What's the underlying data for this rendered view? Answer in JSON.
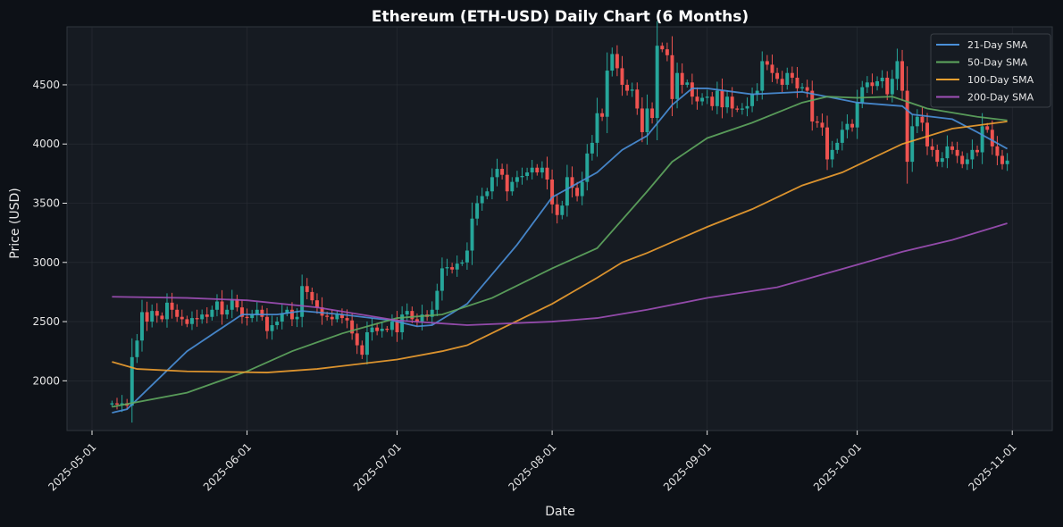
{
  "chart_data": {
    "type": "candlestick",
    "title": "Ethereum (ETH-USD) Daily Chart (6 Months)",
    "xlabel": "Date",
    "ylabel": "Price (USD)",
    "xlim": [
      "2025-04-26",
      "2025-11-09"
    ],
    "ylim": [
      1580,
      4990
    ],
    "x_ticks": [
      "2025-05-01",
      "2025-06-01",
      "2025-07-01",
      "2025-08-01",
      "2025-09-01",
      "2025-10-01",
      "2025-11-01"
    ],
    "y_ticks": [
      2000,
      2500,
      3000,
      3500,
      4000,
      4500
    ],
    "grid": true,
    "legend_position": "top-right",
    "colors": {
      "up": "#26a69a",
      "down": "#ef5350",
      "background": "#0d1117",
      "plot_background": "#161b22"
    },
    "candles": {
      "start_date": "2025-05-05",
      "frequency": "daily",
      "close": [
        1810,
        1800,
        1810,
        1790,
        2200,
        2340,
        2580,
        2500,
        2590,
        2550,
        2520,
        2660,
        2600,
        2540,
        2520,
        2480,
        2530,
        2520,
        2560,
        2540,
        2600,
        2670,
        2560,
        2600,
        2690,
        2620,
        2540,
        2530,
        2560,
        2600,
        2540,
        2420,
        2470,
        2500,
        2570,
        2600,
        2520,
        2540,
        2800,
        2750,
        2680,
        2620,
        2550,
        2540,
        2520,
        2560,
        2530,
        2510,
        2400,
        2300,
        2220,
        2410,
        2450,
        2420,
        2440,
        2430,
        2500,
        2410,
        2560,
        2590,
        2520,
        2500,
        2560,
        2540,
        2600,
        2760,
        2950,
        2960,
        2940,
        2990,
        3000,
        3100,
        3370,
        3500,
        3560,
        3600,
        3720,
        3790,
        3740,
        3600,
        3680,
        3720,
        3730,
        3760,
        3800,
        3760,
        3800,
        3700,
        3490,
        3400,
        3480,
        3720,
        3630,
        3560,
        3680,
        3920,
        4010,
        4260,
        4230,
        4620,
        4760,
        4640,
        4500,
        4450,
        4460,
        4300,
        4100,
        4300,
        4220,
        4830,
        4800,
        4750,
        4380,
        4600,
        4500,
        4520,
        4400,
        4360,
        4390,
        4400,
        4320,
        4450,
        4310,
        4400,
        4300,
        4290,
        4300,
        4320,
        4420,
        4450,
        4700,
        4670,
        4600,
        4550,
        4500,
        4600,
        4560,
        4470,
        4480,
        4450,
        4190,
        4180,
        4140,
        3870,
        3950,
        4010,
        4120,
        4170,
        4140,
        4350,
        4480,
        4520,
        4490,
        4530,
        4560,
        4420,
        4550,
        4700,
        4450,
        3850,
        4150,
        4230,
        4180,
        3980,
        3950,
        3850,
        3880,
        3980,
        3950,
        3900,
        3830,
        3870,
        3950,
        3930,
        4150,
        4120,
        3980,
        3900,
        3830,
        3860
      ]
    },
    "series": [
      {
        "name": "21-Day SMA",
        "color": "#4a90d9",
        "points": [
          [
            "2025-05-05",
            1730
          ],
          [
            "2025-05-08",
            1760
          ],
          [
            "2025-05-20",
            2250
          ],
          [
            "2025-05-31",
            2560
          ],
          [
            "2025-06-07",
            2560
          ],
          [
            "2025-06-12",
            2590
          ],
          [
            "2025-06-20",
            2560
          ],
          [
            "2025-06-30",
            2510
          ],
          [
            "2025-07-05",
            2460
          ],
          [
            "2025-07-08",
            2470
          ],
          [
            "2025-07-15",
            2650
          ],
          [
            "2025-07-20",
            2900
          ],
          [
            "2025-07-25",
            3150
          ],
          [
            "2025-08-01",
            3550
          ],
          [
            "2025-08-10",
            3760
          ],
          [
            "2025-08-15",
            3950
          ],
          [
            "2025-08-20",
            4070
          ],
          [
            "2025-08-25",
            4330
          ],
          [
            "2025-08-29",
            4470
          ],
          [
            "2025-09-01",
            4470
          ],
          [
            "2025-09-10",
            4420
          ],
          [
            "2025-09-20",
            4440
          ],
          [
            "2025-09-25",
            4400
          ],
          [
            "2025-10-01",
            4350
          ],
          [
            "2025-10-10",
            4320
          ],
          [
            "2025-10-12",
            4250
          ],
          [
            "2025-10-20",
            4210
          ],
          [
            "2025-10-25",
            4100
          ],
          [
            "2025-10-31",
            3960
          ]
        ]
      },
      {
        "name": "50-Day SMA",
        "color": "#5fa85f",
        "points": [
          [
            "2025-05-05",
            1780
          ],
          [
            "2025-05-20",
            1900
          ],
          [
            "2025-06-01",
            2080
          ],
          [
            "2025-06-10",
            2250
          ],
          [
            "2025-06-20",
            2400
          ],
          [
            "2025-07-01",
            2530
          ],
          [
            "2025-07-10",
            2560
          ],
          [
            "2025-07-20",
            2700
          ],
          [
            "2025-08-01",
            2950
          ],
          [
            "2025-08-10",
            3120
          ],
          [
            "2025-08-20",
            3600
          ],
          [
            "2025-08-25",
            3850
          ],
          [
            "2025-09-01",
            4050
          ],
          [
            "2025-09-10",
            4180
          ],
          [
            "2025-09-20",
            4350
          ],
          [
            "2025-09-25",
            4400
          ],
          [
            "2025-10-01",
            4390
          ],
          [
            "2025-10-08",
            4400
          ],
          [
            "2025-10-15",
            4300
          ],
          [
            "2025-10-25",
            4230
          ],
          [
            "2025-10-31",
            4200
          ]
        ]
      },
      {
        "name": "100-Day SMA",
        "color": "#f0a030",
        "points": [
          [
            "2025-05-05",
            2160
          ],
          [
            "2025-05-10",
            2100
          ],
          [
            "2025-05-20",
            2080
          ],
          [
            "2025-06-05",
            2070
          ],
          [
            "2025-06-15",
            2100
          ],
          [
            "2025-07-01",
            2180
          ],
          [
            "2025-07-10",
            2250
          ],
          [
            "2025-07-15",
            2300
          ],
          [
            "2025-08-01",
            2650
          ],
          [
            "2025-08-10",
            2870
          ],
          [
            "2025-08-15",
            3000
          ],
          [
            "2025-08-20",
            3080
          ],
          [
            "2025-09-01",
            3300
          ],
          [
            "2025-09-10",
            3450
          ],
          [
            "2025-09-20",
            3650
          ],
          [
            "2025-09-28",
            3760
          ],
          [
            "2025-10-10",
            4000
          ],
          [
            "2025-10-20",
            4130
          ],
          [
            "2025-10-31",
            4190
          ]
        ]
      },
      {
        "name": "200-Day SMA",
        "color": "#a050b8",
        "points": [
          [
            "2025-05-05",
            2710
          ],
          [
            "2025-05-20",
            2700
          ],
          [
            "2025-06-01",
            2680
          ],
          [
            "2025-06-15",
            2620
          ],
          [
            "2025-07-01",
            2510
          ],
          [
            "2025-07-15",
            2470
          ],
          [
            "2025-08-01",
            2500
          ],
          [
            "2025-08-10",
            2530
          ],
          [
            "2025-08-20",
            2600
          ],
          [
            "2025-09-01",
            2700
          ],
          [
            "2025-09-15",
            2790
          ],
          [
            "2025-10-01",
            2980
          ],
          [
            "2025-10-10",
            3090
          ],
          [
            "2025-10-20",
            3190
          ],
          [
            "2025-10-31",
            3330
          ]
        ]
      }
    ]
  }
}
